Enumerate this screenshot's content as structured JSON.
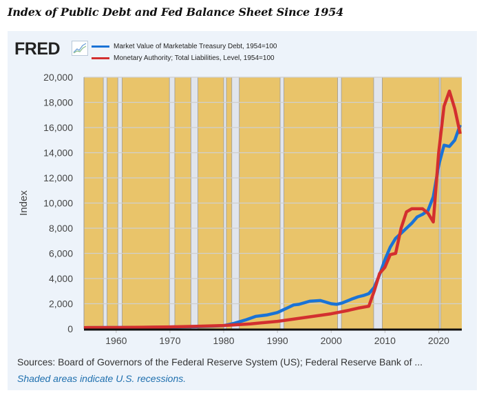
{
  "page": {
    "title": "Index of Public Debt and Fed Balance Sheet Since 1954"
  },
  "brand": {
    "logo_text": "FRED",
    "icon": "line-chart-icon"
  },
  "footer": {
    "sources": "Sources: Board of Governors of the Federal Reserve System (US); Federal Reserve Bank of ...",
    "note": "Shaded areas indicate U.S. recessions."
  },
  "colors": {
    "panel_bg": "#edf3fa",
    "plot_bg": "#e9c46a",
    "recession": "#e1e5ec",
    "grid": "#cfcfcf",
    "blue": "#1a73d6",
    "red": "#d32f2f"
  },
  "chart_data": {
    "type": "line",
    "title": "Index of Public Debt and Fed Balance Sheet Since 1954",
    "xlabel": "",
    "ylabel": "Index",
    "xlim": [
      1954,
      2024.3
    ],
    "ylim": [
      0,
      20000
    ],
    "x_ticks": [
      1960,
      1970,
      1980,
      1990,
      2000,
      2010,
      2020
    ],
    "x_tick_labels": [
      "1960",
      "1970",
      "1980",
      "1990",
      "2000",
      "2010",
      "2020"
    ],
    "y_ticks": [
      0,
      2000,
      4000,
      6000,
      8000,
      10000,
      12000,
      14000,
      16000,
      18000,
      20000
    ],
    "y_tick_labels": [
      "0",
      "2,000",
      "4,000",
      "6,000",
      "8,000",
      "10,000",
      "12,000",
      "14,000",
      "16,000",
      "18,000",
      "20,000"
    ],
    "grid": true,
    "legend_position": "top-left",
    "recessions": [
      [
        1957.6,
        1958.3
      ],
      [
        1960.3,
        1961.1
      ],
      [
        1969.9,
        1970.9
      ],
      [
        1973.9,
        1975.2
      ],
      [
        1980.0,
        1980.5
      ],
      [
        1981.5,
        1982.9
      ],
      [
        1990.5,
        1991.2
      ],
      [
        2001.2,
        2001.9
      ],
      [
        2007.9,
        2009.5
      ],
      [
        2020.1,
        2020.3
      ]
    ],
    "series": [
      {
        "name": "Market Value of Marketable Treasury Debt, 1954=100",
        "color": "#1a73d6",
        "x": [
          1954,
          1960,
          1965,
          1970,
          1975,
          1978,
          1980,
          1982,
          1984,
          1986,
          1988,
          1990,
          1992,
          1993,
          1994,
          1996,
          1998,
          2000,
          2001,
          2002,
          2004,
          2005,
          2006,
          2007,
          2008,
          2009,
          2010,
          2011,
          2012,
          2013,
          2014,
          2015,
          2016,
          2017,
          2018,
          2019,
          2020,
          2020.5,
          2021,
          2022,
          2023,
          2024
        ],
        "values": [
          100,
          110,
          120,
          140,
          180,
          220,
          260,
          450,
          700,
          1000,
          1100,
          1300,
          1700,
          1900,
          1950,
          2200,
          2250,
          2000,
          1950,
          2050,
          2400,
          2550,
          2650,
          2800,
          3300,
          4300,
          5500,
          6500,
          7200,
          7600,
          8000,
          8400,
          8900,
          9100,
          9400,
          10500,
          13000,
          13800,
          14600,
          14500,
          15000,
          16200
        ]
      },
      {
        "name": "Monetary Authority; Total Liabilities, Level, 1954=100",
        "color": "#d32f2f",
        "x": [
          1954,
          1960,
          1965,
          1970,
          1975,
          1980,
          1985,
          1990,
          1995,
          2000,
          2003,
          2005,
          2007,
          2008,
          2009,
          2010,
          2011,
          2012,
          2013,
          2014,
          2015,
          2016,
          2017,
          2018,
          2019,
          2020,
          2021,
          2022,
          2023,
          2024
        ],
        "values": [
          100,
          110,
          130,
          160,
          210,
          270,
          400,
          600,
          900,
          1200,
          1450,
          1650,
          1800,
          3000,
          4400,
          4900,
          5900,
          6000,
          8000,
          9300,
          9550,
          9550,
          9550,
          9200,
          8500,
          14000,
          17700,
          18900,
          17500,
          15500
        ]
      }
    ]
  }
}
